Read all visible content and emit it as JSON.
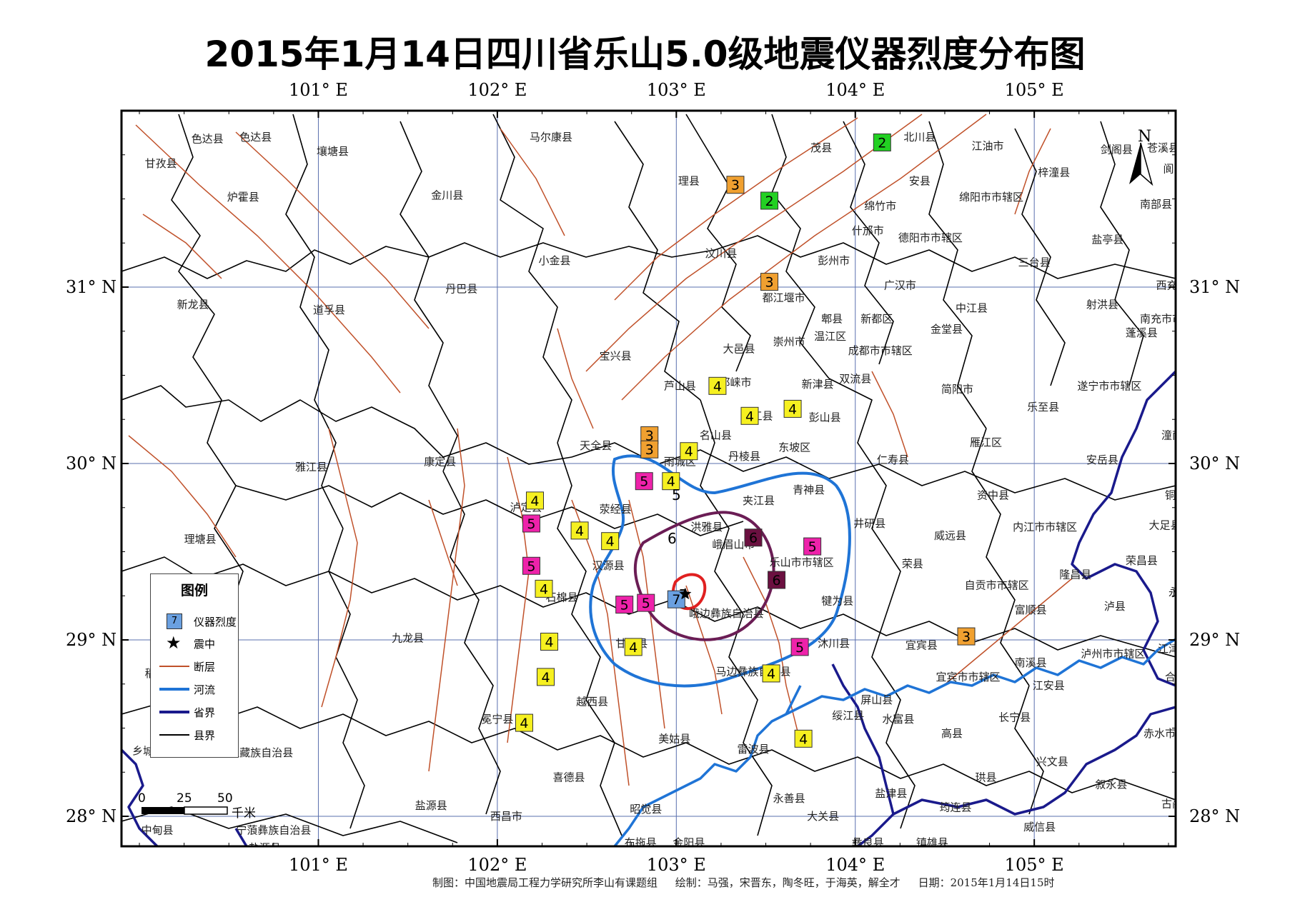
{
  "title": "2015年1月14日四川省乐山5.0级地震仪器烈度分布图",
  "lon_labels": [
    "101° E",
    "102° E",
    "103° E",
    "104° E",
    "105° E"
  ],
  "lat_labels": [
    "31° N",
    "30° N",
    "29° N",
    "28° N"
  ],
  "north_label": "N",
  "scale": {
    "ticks": [
      "0",
      "25",
      "50"
    ],
    "unit": "千米"
  },
  "legend": {
    "title": "图例",
    "intensity_sample": "7",
    "items": [
      {
        "symbol": "intensity-box",
        "label": "仪器烈度"
      },
      {
        "symbol": "star",
        "label": "震中"
      },
      {
        "symbol": "fault-line",
        "label": "断层",
        "color": "#c0512a"
      },
      {
        "symbol": "river-line",
        "label": "河流",
        "color": "#1f74d6"
      },
      {
        "symbol": "province-line",
        "label": "省界",
        "color": "#1a1a8c"
      },
      {
        "symbol": "county-line",
        "label": "县界",
        "color": "#000000"
      }
    ]
  },
  "intensity_colors": {
    "2": "#22d022",
    "3": "#f0a030",
    "4": "#f6f020",
    "5": "#ee22aa",
    "6": "#6b1040",
    "7": "#6aa0e0"
  },
  "contour_colors": {
    "5": "#1f74d6",
    "6": "#6b1d55",
    "7": "#e02020"
  },
  "contour_labels": [
    "5",
    "6",
    "7"
  ],
  "stations": [
    {
      "lon": 104.15,
      "lat": 31.82,
      "value": 2
    },
    {
      "lon": 103.33,
      "lat": 31.58,
      "value": 3
    },
    {
      "lon": 103.52,
      "lat": 31.49,
      "value": 2
    },
    {
      "lon": 103.52,
      "lat": 31.03,
      "value": 3
    },
    {
      "lon": 103.23,
      "lat": 30.44,
      "value": 4
    },
    {
      "lon": 103.41,
      "lat": 30.27,
      "value": 4
    },
    {
      "lon": 103.65,
      "lat": 30.31,
      "value": 4
    },
    {
      "lon": 102.85,
      "lat": 30.16,
      "value": 3
    },
    {
      "lon": 102.85,
      "lat": 30.08,
      "value": 3
    },
    {
      "lon": 103.07,
      "lat": 30.07,
      "value": 4
    },
    {
      "lon": 102.82,
      "lat": 29.9,
      "value": 5
    },
    {
      "lon": 102.97,
      "lat": 29.9,
      "value": 4
    },
    {
      "lon": 102.21,
      "lat": 29.79,
      "value": 4
    },
    {
      "lon": 102.19,
      "lat": 29.66,
      "value": 5
    },
    {
      "lon": 102.46,
      "lat": 29.62,
      "value": 4
    },
    {
      "lon": 102.63,
      "lat": 29.56,
      "value": 4
    },
    {
      "lon": 102.19,
      "lat": 29.42,
      "value": 5
    },
    {
      "lon": 102.26,
      "lat": 29.29,
      "value": 4
    },
    {
      "lon": 102.71,
      "lat": 29.2,
      "value": 5
    },
    {
      "lon": 102.83,
      "lat": 29.21,
      "value": 5
    },
    {
      "lon": 103.0,
      "lat": 29.23,
      "value": 7
    },
    {
      "lon": 103.43,
      "lat": 29.58,
      "value": 6
    },
    {
      "lon": 103.56,
      "lat": 29.34,
      "value": 6
    },
    {
      "lon": 103.76,
      "lat": 29.53,
      "value": 5
    },
    {
      "lon": 103.69,
      "lat": 28.96,
      "value": 5
    },
    {
      "lon": 102.29,
      "lat": 28.99,
      "value": 4
    },
    {
      "lon": 102.76,
      "lat": 28.96,
      "value": 4
    },
    {
      "lon": 102.27,
      "lat": 28.79,
      "value": 4
    },
    {
      "lon": 103.53,
      "lat": 28.81,
      "value": 4
    },
    {
      "lon": 102.15,
      "lat": 28.53,
      "value": 4
    },
    {
      "lon": 103.71,
      "lat": 28.44,
      "value": 4
    },
    {
      "lon": 104.62,
      "lat": 29.02,
      "value": 3
    }
  ],
  "epicenter": {
    "lon": 103.05,
    "lat": 29.26
  },
  "places": [
    {
      "name": "色达县",
      "lon": 100.38,
      "lat": 31.82
    },
    {
      "name": "色达县",
      "lon": 100.65,
      "lat": 31.83
    },
    {
      "name": "壤塘县",
      "lon": 101.08,
      "lat": 31.75
    },
    {
      "name": "甘孜县",
      "lon": 100.12,
      "lat": 31.68
    },
    {
      "name": "炉霍县",
      "lon": 100.58,
      "lat": 31.49
    },
    {
      "name": "马尔康县",
      "lon": 102.3,
      "lat": 31.83
    },
    {
      "name": "金川县",
      "lon": 101.72,
      "lat": 31.5
    },
    {
      "name": "理县",
      "lon": 103.07,
      "lat": 31.58
    },
    {
      "name": "茂县",
      "lon": 103.81,
      "lat": 31.77
    },
    {
      "name": "北川县",
      "lon": 104.36,
      "lat": 31.83
    },
    {
      "name": "江油市",
      "lon": 104.74,
      "lat": 31.78
    },
    {
      "name": "梓潼县",
      "lon": 105.11,
      "lat": 31.63
    },
    {
      "name": "剑阁县",
      "lon": 105.46,
      "lat": 31.76
    },
    {
      "name": "苍溪县",
      "lon": 105.72,
      "lat": 31.77
    },
    {
      "name": "安县",
      "lon": 104.36,
      "lat": 31.58
    },
    {
      "name": "绵阳市市辖区",
      "lon": 104.76,
      "lat": 31.49
    },
    {
      "name": "阆中市",
      "lon": 105.81,
      "lat": 31.65
    },
    {
      "name": "南部县",
      "lon": 105.68,
      "lat": 31.45
    },
    {
      "name": "绵竹市",
      "lon": 104.14,
      "lat": 31.44
    },
    {
      "name": "什邡市",
      "lon": 104.07,
      "lat": 31.3
    },
    {
      "name": "德阳市市辖区",
      "lon": 104.42,
      "lat": 31.26
    },
    {
      "name": "盐亭县",
      "lon": 105.41,
      "lat": 31.25
    },
    {
      "name": "小金县",
      "lon": 102.32,
      "lat": 31.13
    },
    {
      "name": "汶川县",
      "lon": 103.25,
      "lat": 31.17
    },
    {
      "name": "彭州市",
      "lon": 103.88,
      "lat": 31.13
    },
    {
      "name": "三台县",
      "lon": 105.0,
      "lat": 31.12
    },
    {
      "name": "丹巴县",
      "lon": 101.8,
      "lat": 30.97
    },
    {
      "name": "广汉市",
      "lon": 104.25,
      "lat": 30.99
    },
    {
      "name": "西充县",
      "lon": 105.77,
      "lat": 30.99
    },
    {
      "name": "新龙县",
      "lon": 100.3,
      "lat": 30.88
    },
    {
      "name": "道孚县",
      "lon": 101.06,
      "lat": 30.85
    },
    {
      "name": "都江堰市",
      "lon": 103.6,
      "lat": 30.92
    },
    {
      "name": "郫县",
      "lon": 103.87,
      "lat": 30.8
    },
    {
      "name": "新都区",
      "lon": 104.12,
      "lat": 30.8
    },
    {
      "name": "中江县",
      "lon": 104.65,
      "lat": 30.86
    },
    {
      "name": "射洪县",
      "lon": 105.38,
      "lat": 30.88
    },
    {
      "name": "南充市市辖区",
      "lon": 105.77,
      "lat": 30.8
    },
    {
      "name": "蓬溪县",
      "lon": 105.6,
      "lat": 30.72
    },
    {
      "name": "金堂县",
      "lon": 104.51,
      "lat": 30.74
    },
    {
      "name": "温江区",
      "lon": 103.86,
      "lat": 30.7
    },
    {
      "name": "大邑县",
      "lon": 103.35,
      "lat": 30.63
    },
    {
      "name": "崇州市",
      "lon": 103.63,
      "lat": 30.67
    },
    {
      "name": "成都市市辖区",
      "lon": 104.14,
      "lat": 30.62
    },
    {
      "name": "宝兴县",
      "lon": 102.66,
      "lat": 30.59
    },
    {
      "name": "双流县",
      "lon": 104.0,
      "lat": 30.46
    },
    {
      "name": "邛崃市",
      "lon": 103.33,
      "lat": 30.44
    },
    {
      "name": "新津县",
      "lon": 103.79,
      "lat": 30.43
    },
    {
      "name": "芦山县",
      "lon": 103.02,
      "lat": 30.42
    },
    {
      "name": "简阳市",
      "lon": 104.57,
      "lat": 30.4
    },
    {
      "name": "遂宁市市辖区",
      "lon": 105.42,
      "lat": 30.42
    },
    {
      "name": "乐至县",
      "lon": 105.05,
      "lat": 30.3
    },
    {
      "name": "彭山县",
      "lon": 103.83,
      "lat": 30.24
    },
    {
      "name": "蒲江县",
      "lon": 103.45,
      "lat": 30.25
    },
    {
      "name": "名山县",
      "lon": 103.22,
      "lat": 30.14
    },
    {
      "name": "天全县",
      "lon": 102.55,
      "lat": 30.08
    },
    {
      "name": "东坡区",
      "lon": 103.66,
      "lat": 30.07
    },
    {
      "name": "丹棱县",
      "lon": 103.38,
      "lat": 30.02
    },
    {
      "name": "雅江县",
      "lon": 100.96,
      "lat": 29.96
    },
    {
      "name": "康定县",
      "lon": 101.68,
      "lat": 29.99
    },
    {
      "name": "雨城区",
      "lon": 103.02,
      "lat": 29.99
    },
    {
      "name": "仁寿县",
      "lon": 104.21,
      "lat": 30.0
    },
    {
      "name": "雁江区",
      "lon": 104.73,
      "lat": 30.1
    },
    {
      "name": "安岳县",
      "lon": 105.38,
      "lat": 30.0
    },
    {
      "name": "潼南县",
      "lon": 105.8,
      "lat": 30.14
    },
    {
      "name": "泸定县",
      "lon": 102.16,
      "lat": 29.73
    },
    {
      "name": "荥经县",
      "lon": 102.66,
      "lat": 29.72
    },
    {
      "name": "夹江县",
      "lon": 103.46,
      "lat": 29.77
    },
    {
      "name": "青神县",
      "lon": 103.74,
      "lat": 29.83
    },
    {
      "name": "资中县",
      "lon": 104.77,
      "lat": 29.8
    },
    {
      "name": "铜梁县",
      "lon": 105.82,
      "lat": 29.8
    },
    {
      "name": "洪雅县",
      "lon": 103.17,
      "lat": 29.62
    },
    {
      "name": "峨眉山市",
      "lon": 103.32,
      "lat": 29.52
    },
    {
      "name": "井研县",
      "lon": 104.08,
      "lat": 29.64
    },
    {
      "name": "威远县",
      "lon": 104.53,
      "lat": 29.57
    },
    {
      "name": "内江市市辖区",
      "lon": 105.06,
      "lat": 29.62
    },
    {
      "name": "大足县",
      "lon": 105.73,
      "lat": 29.63
    },
    {
      "name": "理塘县",
      "lon": 100.34,
      "lat": 29.55
    },
    {
      "name": "乐山市市辖区",
      "lon": 103.7,
      "lat": 29.42
    },
    {
      "name": "荣县",
      "lon": 104.32,
      "lat": 29.41
    },
    {
      "name": "隆昌县",
      "lon": 105.23,
      "lat": 29.35
    },
    {
      "name": "荣昌县",
      "lon": 105.6,
      "lat": 29.43
    },
    {
      "name": "汉源县",
      "lon": 102.62,
      "lat": 29.4
    },
    {
      "name": "峨边彝族自治县",
      "lon": 103.28,
      "lat": 29.13
    },
    {
      "name": "犍为县",
      "lon": 103.9,
      "lat": 29.2
    },
    {
      "name": "自贡市市辖区",
      "lon": 104.79,
      "lat": 29.29
    },
    {
      "name": "富顺县",
      "lon": 104.98,
      "lat": 29.15
    },
    {
      "name": "泸县",
      "lon": 105.45,
      "lat": 29.17
    },
    {
      "name": "永川市",
      "lon": 105.84,
      "lat": 29.25
    },
    {
      "name": "石棉县",
      "lon": 102.36,
      "lat": 29.22
    },
    {
      "name": "甘洛县",
      "lon": 102.75,
      "lat": 28.96
    },
    {
      "name": "沐川县",
      "lon": 103.88,
      "lat": 28.96
    },
    {
      "name": "宜宾县",
      "lon": 104.37,
      "lat": 28.95
    },
    {
      "name": "南溪县",
      "lon": 104.98,
      "lat": 28.85
    },
    {
      "name": "江津市",
      "lon": 105.78,
      "lat": 28.93
    },
    {
      "name": "九龙县",
      "lon": 101.5,
      "lat": 28.99
    },
    {
      "name": "马边彝族自治县",
      "lon": 103.43,
      "lat": 28.8
    },
    {
      "name": "宜宾市市辖区",
      "lon": 104.63,
      "lat": 28.77
    },
    {
      "name": "泸州市市辖区",
      "lon": 105.44,
      "lat": 28.9
    },
    {
      "name": "江安县",
      "lon": 105.08,
      "lat": 28.72
    },
    {
      "name": "合江县",
      "lon": 105.82,
      "lat": 28.77
    },
    {
      "name": "屏山县",
      "lon": 104.12,
      "lat": 28.64
    },
    {
      "name": "越西县",
      "lon": 102.53,
      "lat": 28.63
    },
    {
      "name": "冕宁县",
      "lon": 102.0,
      "lat": 28.53
    },
    {
      "name": "绥江县",
      "lon": 103.96,
      "lat": 28.55
    },
    {
      "name": "水富县",
      "lon": 104.24,
      "lat": 28.53
    },
    {
      "name": "长宁县",
      "lon": 104.89,
      "lat": 28.54
    },
    {
      "name": "高县",
      "lon": 104.54,
      "lat": 28.45
    },
    {
      "name": "赤水市",
      "lon": 105.7,
      "lat": 28.45
    },
    {
      "name": "木里藏族自治县",
      "lon": 100.65,
      "lat": 28.34
    },
    {
      "name": "美姑县",
      "lon": 102.99,
      "lat": 28.42
    },
    {
      "name": "雷波县",
      "lon": 103.43,
      "lat": 28.36
    },
    {
      "name": "兴文县",
      "lon": 105.1,
      "lat": 28.29
    },
    {
      "name": "喜德县",
      "lon": 102.4,
      "lat": 28.2
    },
    {
      "name": "珙县",
      "lon": 104.73,
      "lat": 28.2
    },
    {
      "name": "叙永县",
      "lon": 105.43,
      "lat": 28.16
    },
    {
      "name": "盐津县",
      "lon": 104.2,
      "lat": 28.11
    },
    {
      "name": "永善县",
      "lon": 103.63,
      "lat": 28.08
    },
    {
      "name": "古蔺县",
      "lon": 105.8,
      "lat": 28.05
    },
    {
      "name": "盐源县",
      "lon": 101.63,
      "lat": 28.04
    },
    {
      "name": "昭觉县",
      "lon": 102.83,
      "lat": 28.02
    },
    {
      "name": "筠连县",
      "lon": 104.56,
      "lat": 28.03
    },
    {
      "name": "西昌市",
      "lon": 102.05,
      "lat": 27.98
    },
    {
      "name": "大关县",
      "lon": 103.82,
      "lat": 27.98
    },
    {
      "name": "威信县",
      "lon": 105.03,
      "lat": 27.92
    },
    {
      "name": "宁蒗彝族自治县",
      "lon": 100.75,
      "lat": 27.9
    },
    {
      "name": "布拖县",
      "lon": 102.8,
      "lat": 27.83
    },
    {
      "name": "金阳县",
      "lon": 103.07,
      "lat": 27.83
    },
    {
      "name": "彝良县",
      "lon": 104.07,
      "lat": 27.83
    },
    {
      "name": "镇雄县",
      "lon": 104.43,
      "lat": 27.83
    },
    {
      "name": "盐源县",
      "lon": 100.7,
      "lat": 27.8
    },
    {
      "name": "中甸县",
      "lon": 100.1,
      "lat": 27.9
    },
    {
      "name": "稻城县",
      "lon": 100.12,
      "lat": 28.79
    },
    {
      "name": "乡城县",
      "lon": 100.05,
      "lat": 28.35
    }
  ],
  "credits": {
    "maker": "制图：中国地震局工程力学研究所李山有课题组",
    "drawers": "绘制：马强，宋晋东，陶冬旺，于海英，解全才",
    "date": "日期：2015年1月14日15时"
  }
}
